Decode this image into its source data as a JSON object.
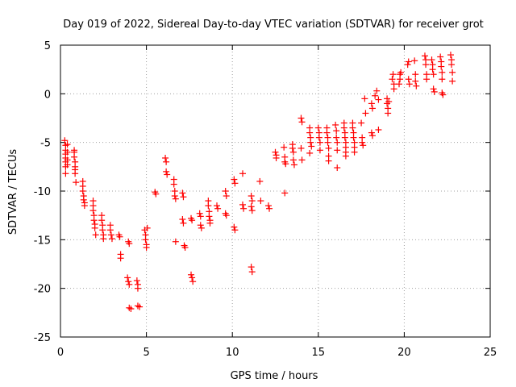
{
  "chart_data": {
    "type": "scatter",
    "title": "Day 019 of 2022, Sidereal Day-to-day VTEC variation (SDTVAR) for receiver grot",
    "xlabel": "GPS time / hours",
    "ylabel": "SDTVAR / TECUs",
    "xlim": [
      0,
      25
    ],
    "ylim": [
      -25,
      5
    ],
    "xticks": [
      0,
      5,
      10,
      15,
      20,
      25
    ],
    "yticks": [
      -25,
      -20,
      -15,
      -10,
      -5,
      0,
      5
    ],
    "xtick_labels": [
      "0",
      "5",
      "10",
      "15",
      "20",
      "25"
    ],
    "ytick_labels": [
      "-25",
      "-20",
      "-15",
      "-10",
      "-5",
      "0",
      "5"
    ],
    "grid": true,
    "marker": "+",
    "color": "#ff0000",
    "series": [
      {
        "name": "SDTVAR",
        "points": [
          [
            0.25,
            -4.8
          ],
          [
            0.3,
            -5.3
          ],
          [
            0.3,
            -5.8
          ],
          [
            0.3,
            -6.2
          ],
          [
            0.3,
            -6.6
          ],
          [
            0.3,
            -7.0
          ],
          [
            0.3,
            -7.5
          ],
          [
            0.3,
            -8.2
          ],
          [
            0.4,
            -5.2
          ],
          [
            0.4,
            -6.0
          ],
          [
            0.4,
            -6.8
          ],
          [
            0.4,
            -7.3
          ],
          [
            0.8,
            -6.0
          ],
          [
            0.8,
            -6.5
          ],
          [
            0.85,
            -7.0
          ],
          [
            0.85,
            -7.5
          ],
          [
            0.85,
            -7.8
          ],
          [
            0.85,
            -8.2
          ],
          [
            0.9,
            -9.1
          ],
          [
            0.8,
            -5.8
          ],
          [
            1.3,
            -9.0
          ],
          [
            1.3,
            -9.5
          ],
          [
            1.3,
            -10.0
          ],
          [
            1.35,
            -10.5
          ],
          [
            1.35,
            -10.9
          ],
          [
            1.4,
            -11.2
          ],
          [
            1.4,
            -11.5
          ],
          [
            1.9,
            -11.0
          ],
          [
            1.9,
            -11.5
          ],
          [
            1.9,
            -12.0
          ],
          [
            1.95,
            -12.5
          ],
          [
            1.95,
            -13.0
          ],
          [
            2.0,
            -13.4
          ],
          [
            2.0,
            -13.8
          ],
          [
            2.05,
            -14.5
          ],
          [
            2.4,
            -12.5
          ],
          [
            2.4,
            -13.0
          ],
          [
            2.45,
            -13.5
          ],
          [
            2.45,
            -14.0
          ],
          [
            2.5,
            -14.5
          ],
          [
            2.5,
            -14.9
          ],
          [
            2.9,
            -13.5
          ],
          [
            2.9,
            -14.0
          ],
          [
            2.95,
            -14.5
          ],
          [
            3.0,
            -14.9
          ],
          [
            3.4,
            -14.5
          ],
          [
            3.45,
            -14.7
          ],
          [
            3.5,
            -16.5
          ],
          [
            3.5,
            -16.9
          ],
          [
            3.95,
            -15.2
          ],
          [
            4.0,
            -15.4
          ],
          [
            3.9,
            -18.9
          ],
          [
            3.95,
            -19.3
          ],
          [
            4.0,
            -19.6
          ],
          [
            4.0,
            -22.0
          ],
          [
            4.1,
            -22.1
          ],
          [
            4.45,
            -19.2
          ],
          [
            4.5,
            -19.6
          ],
          [
            4.5,
            -20.0
          ],
          [
            4.5,
            -21.8
          ],
          [
            4.6,
            -21.9
          ],
          [
            4.9,
            -14.0
          ],
          [
            4.95,
            -14.5
          ],
          [
            4.95,
            -15.0
          ],
          [
            5.0,
            -15.5
          ],
          [
            5.0,
            -15.8
          ],
          [
            5.05,
            -13.8
          ],
          [
            5.5,
            -10.1
          ],
          [
            5.55,
            -10.3
          ],
          [
            6.1,
            -6.6
          ],
          [
            6.15,
            -7.0
          ],
          [
            6.15,
            -8.0
          ],
          [
            6.2,
            -8.3
          ],
          [
            6.6,
            -8.8
          ],
          [
            6.6,
            -9.3
          ],
          [
            6.65,
            -10.0
          ],
          [
            6.65,
            -10.5
          ],
          [
            6.7,
            -10.8
          ],
          [
            6.7,
            -15.2
          ],
          [
            7.1,
            -10.2
          ],
          [
            7.15,
            -10.6
          ],
          [
            7.1,
            -12.9
          ],
          [
            7.15,
            -13.3
          ],
          [
            7.2,
            -15.6
          ],
          [
            7.25,
            -15.8
          ],
          [
            7.6,
            -12.8
          ],
          [
            7.65,
            -13.0
          ],
          [
            7.6,
            -18.6
          ],
          [
            7.65,
            -18.9
          ],
          [
            7.7,
            -19.3
          ],
          [
            8.1,
            -12.3
          ],
          [
            8.15,
            -12.6
          ],
          [
            8.15,
            -13.5
          ],
          [
            8.2,
            -13.8
          ],
          [
            8.6,
            -11.0
          ],
          [
            8.6,
            -11.5
          ],
          [
            8.65,
            -12.1
          ],
          [
            8.65,
            -12.6
          ],
          [
            8.7,
            -13.0
          ],
          [
            8.7,
            -13.3
          ],
          [
            9.1,
            -11.5
          ],
          [
            9.15,
            -11.8
          ],
          [
            9.6,
            -10.0
          ],
          [
            9.65,
            -10.5
          ],
          [
            9.6,
            -12.3
          ],
          [
            9.65,
            -12.5
          ],
          [
            10.1,
            -8.8
          ],
          [
            10.15,
            -9.2
          ],
          [
            10.1,
            -13.7
          ],
          [
            10.15,
            -14.0
          ],
          [
            10.6,
            -11.4
          ],
          [
            10.65,
            -11.8
          ],
          [
            10.6,
            -8.2
          ],
          [
            11.1,
            -10.5
          ],
          [
            11.15,
            -11.0
          ],
          [
            11.1,
            -11.6
          ],
          [
            11.15,
            -12.0
          ],
          [
            11.1,
            -17.8
          ],
          [
            11.15,
            -18.3
          ],
          [
            11.6,
            -9.0
          ],
          [
            11.65,
            -11.0
          ],
          [
            12.1,
            -11.5
          ],
          [
            12.15,
            -11.8
          ],
          [
            12.5,
            -6.0
          ],
          [
            12.55,
            -6.3
          ],
          [
            12.55,
            -6.6
          ],
          [
            13.0,
            -5.5
          ],
          [
            13.05,
            -6.5
          ],
          [
            13.05,
            -7.0
          ],
          [
            13.1,
            -7.2
          ],
          [
            13.05,
            -10.2
          ],
          [
            13.5,
            -5.2
          ],
          [
            13.5,
            -5.6
          ],
          [
            13.55,
            -6.0
          ],
          [
            13.55,
            -6.8
          ],
          [
            13.6,
            -7.3
          ],
          [
            14.0,
            -2.5
          ],
          [
            14.05,
            -2.9
          ],
          [
            14.0,
            -5.6
          ],
          [
            14.05,
            -6.8
          ],
          [
            14.5,
            -3.5
          ],
          [
            14.5,
            -4.0
          ],
          [
            14.55,
            -4.5
          ],
          [
            14.55,
            -5.0
          ],
          [
            14.6,
            -5.4
          ],
          [
            14.5,
            -6.1
          ],
          [
            15.0,
            -3.5
          ],
          [
            15.05,
            -4.0
          ],
          [
            15.05,
            -4.5
          ],
          [
            15.1,
            -5.0
          ],
          [
            15.1,
            -5.8
          ],
          [
            15.5,
            -3.5
          ],
          [
            15.5,
            -4.0
          ],
          [
            15.55,
            -4.5
          ],
          [
            15.55,
            -5.0
          ],
          [
            15.6,
            -5.6
          ],
          [
            15.6,
            -6.4
          ],
          [
            15.6,
            -6.9
          ],
          [
            16.0,
            -3.2
          ],
          [
            16.05,
            -3.8
          ],
          [
            16.05,
            -4.5
          ],
          [
            16.1,
            -5.0
          ],
          [
            16.1,
            -5.8
          ],
          [
            16.1,
            -7.6
          ],
          [
            16.5,
            -3.0
          ],
          [
            16.5,
            -3.5
          ],
          [
            16.55,
            -4.0
          ],
          [
            16.55,
            -4.5
          ],
          [
            16.6,
            -5.0
          ],
          [
            16.6,
            -5.5
          ],
          [
            16.6,
            -6.0
          ],
          [
            16.6,
            -6.4
          ],
          [
            17.0,
            -3.0
          ],
          [
            17.0,
            -3.5
          ],
          [
            17.05,
            -4.0
          ],
          [
            17.05,
            -4.5
          ],
          [
            17.1,
            -5.0
          ],
          [
            17.1,
            -5.5
          ],
          [
            17.1,
            -6.0
          ],
          [
            17.5,
            -3.0
          ],
          [
            17.55,
            -4.5
          ],
          [
            17.55,
            -5.0
          ],
          [
            17.6,
            -5.3
          ],
          [
            17.7,
            -0.5
          ],
          [
            17.75,
            -2.0
          ],
          [
            18.1,
            -1.0
          ],
          [
            18.15,
            -1.5
          ],
          [
            18.1,
            -4.0
          ],
          [
            18.15,
            -4.3
          ],
          [
            18.3,
            -0.2
          ],
          [
            18.4,
            0.3
          ],
          [
            18.5,
            -0.6
          ],
          [
            18.5,
            -3.7
          ],
          [
            19.0,
            -0.5
          ],
          [
            19.0,
            -1.0
          ],
          [
            19.05,
            -1.5
          ],
          [
            19.05,
            -2.0
          ],
          [
            19.1,
            -0.8
          ],
          [
            19.3,
            1.5
          ],
          [
            19.35,
            2.0
          ],
          [
            19.4,
            1.0
          ],
          [
            19.4,
            0.5
          ],
          [
            19.7,
            1.0
          ],
          [
            19.75,
            1.5
          ],
          [
            19.75,
            2.0
          ],
          [
            19.8,
            2.2
          ],
          [
            20.2,
            3.0
          ],
          [
            20.25,
            3.3
          ],
          [
            20.25,
            1.5
          ],
          [
            20.3,
            1.0
          ],
          [
            20.6,
            3.4
          ],
          [
            20.65,
            2.0
          ],
          [
            20.65,
            1.3
          ],
          [
            20.7,
            0.8
          ],
          [
            21.2,
            3.9
          ],
          [
            21.25,
            3.5
          ],
          [
            21.25,
            3.0
          ],
          [
            21.3,
            2.0
          ],
          [
            21.3,
            1.5
          ],
          [
            21.6,
            3.5
          ],
          [
            21.65,
            3.0
          ],
          [
            21.65,
            2.5
          ],
          [
            21.7,
            2.0
          ],
          [
            21.7,
            0.5
          ],
          [
            21.75,
            0.2
          ],
          [
            22.1,
            3.8
          ],
          [
            22.15,
            3.3
          ],
          [
            22.15,
            2.8
          ],
          [
            22.2,
            2.2
          ],
          [
            22.2,
            1.5
          ],
          [
            22.2,
            0.1
          ],
          [
            22.25,
            -0.1
          ],
          [
            22.7,
            4.0
          ],
          [
            22.75,
            3.5
          ],
          [
            22.75,
            3.0
          ],
          [
            22.8,
            2.2
          ],
          [
            22.8,
            1.3
          ]
        ]
      }
    ]
  }
}
